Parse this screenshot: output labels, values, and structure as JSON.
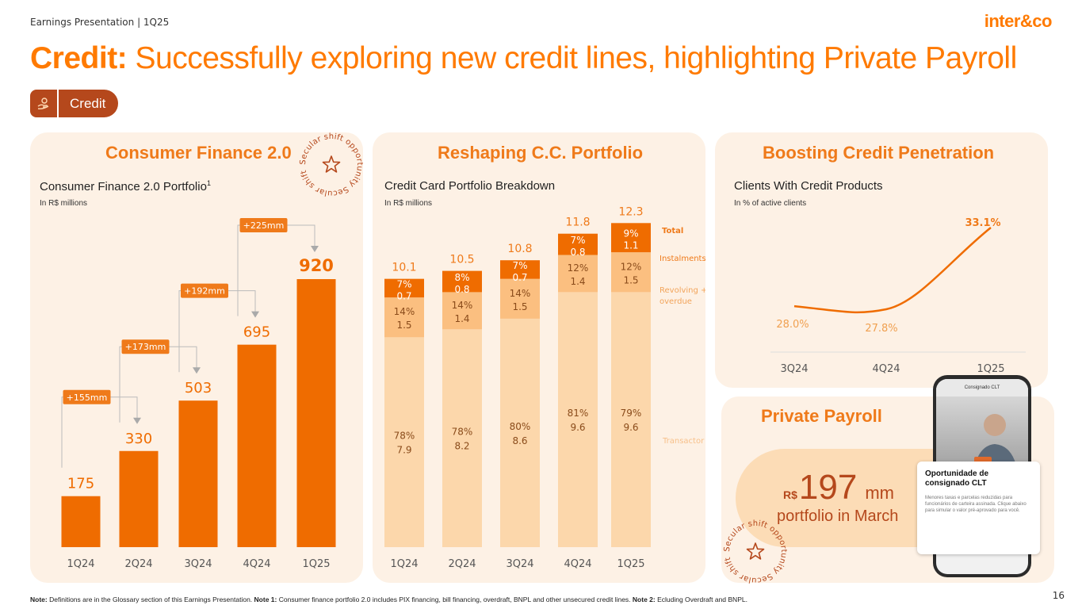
{
  "header": {
    "breadcrumb": "Earnings Presentation | 1Q25",
    "logo": "inter&co"
  },
  "title": {
    "bold": "Credit:",
    "rest": " Successfully exploring new credit lines, highlighting Private Payroll"
  },
  "tag": {
    "label": "Credit",
    "icon": "hand-coin-icon"
  },
  "badges": {
    "secular_text": "Secular shift opportunity"
  },
  "colors": {
    "orange": "#ef7a1a",
    "bar": "#ef6c00",
    "light": "#fcc98f",
    "brown": "#b5481c",
    "panel": "#fdf1e5"
  },
  "panels": {
    "consumer": {
      "title": "Consumer Finance 2.0",
      "subtitle": "Consumer Finance 2.0 Portfolio",
      "sup": "1",
      "unit": "In R$ millions"
    },
    "card": {
      "title": "Reshaping C.C. Portfolio",
      "subtitle": "Credit Card Portfolio Breakdown",
      "unit": "In R$ millions"
    },
    "penetration": {
      "title": "Boosting Credit Penetration",
      "subtitle": "Clients With Credit Products",
      "unit": "In % of active clients"
    },
    "payroll": {
      "title": "Private Payroll",
      "currency": "R$",
      "value": "197",
      "unit": "mm",
      "caption": "portfolio in March"
    }
  },
  "phone": {
    "header": "Consignado CLT",
    "card_title": "Oportunidade de consignado CLT",
    "card_body": "Menores taxas e parcelas reduzidas para funcionários de carteira assinada. Clique abaixo para simular o valor pré-aprovado para você."
  },
  "chart_data": [
    {
      "type": "bar",
      "categories": [
        "1Q24",
        "2Q24",
        "3Q24",
        "4Q24",
        "1Q25"
      ],
      "values": [
        175,
        330,
        503,
        695,
        920
      ],
      "title": "Consumer Finance 2.0 Portfolio",
      "ylabel": "In R$ millions",
      "deltas": [
        "+155mm",
        "+173mm",
        "+192mm",
        "+225mm"
      ]
    },
    {
      "type": "bar",
      "stacked": true,
      "categories": [
        "1Q24",
        "2Q24",
        "3Q24",
        "4Q24",
        "1Q25"
      ],
      "totals": [
        "10.1",
        "10.5",
        "10.8",
        "11.8",
        "12.3"
      ],
      "series": [
        {
          "name": "Transactor",
          "values": [
            7.9,
            8.2,
            8.6,
            9.6,
            9.6
          ],
          "shares": [
            "78%",
            "78%",
            "80%",
            "81%",
            "79%"
          ],
          "labels": [
            "7.9",
            "8.2",
            "8.6",
            "9.6",
            "9.6"
          ]
        },
        {
          "name": "Revolving + overdue",
          "values": [
            1.5,
            1.4,
            1.5,
            1.4,
            1.5
          ],
          "shares": [
            "14%",
            "14%",
            "14%",
            "12%",
            "12%"
          ],
          "labels": [
            "1.5",
            "1.4",
            "1.5",
            "1.4",
            "1.5"
          ]
        },
        {
          "name": "Instalments",
          "values": [
            0.7,
            0.8,
            0.7,
            0.8,
            1.1
          ],
          "shares": [
            "7%",
            "8%",
            "7%",
            "7%",
            "9%"
          ],
          "labels": [
            "0.7",
            "0.8",
            "0.7",
            "0.8",
            "1.1"
          ]
        }
      ],
      "legend": [
        "Total",
        "Instalments",
        "Revolving + overdue",
        "Transactor"
      ],
      "title": "Credit Card Portfolio Breakdown",
      "ylabel": "In R$ millions"
    },
    {
      "type": "line",
      "categories": [
        "3Q24",
        "4Q24",
        "1Q25"
      ],
      "values": [
        28.0,
        27.8,
        33.1
      ],
      "labels": [
        "28.0%",
        "27.8%",
        "33.1%"
      ],
      "title": "Clients With Credit Products",
      "ylabel": "In % of active clients"
    }
  ],
  "footnote": {
    "note_label": "Note:",
    "note_text": " Definitions are in the Glossary section of this Earnings Presentation. ",
    "note1_label": "Note 1:",
    "note1_text": " Consumer finance portfolio 2.0 includes PIX financing, bill financing, overdraft, BNPL and other unsecured credit lines. ",
    "note2_label": "Note 2:",
    "note2_text": " Ecluding Overdraft and BNPL."
  },
  "page_number": "16"
}
